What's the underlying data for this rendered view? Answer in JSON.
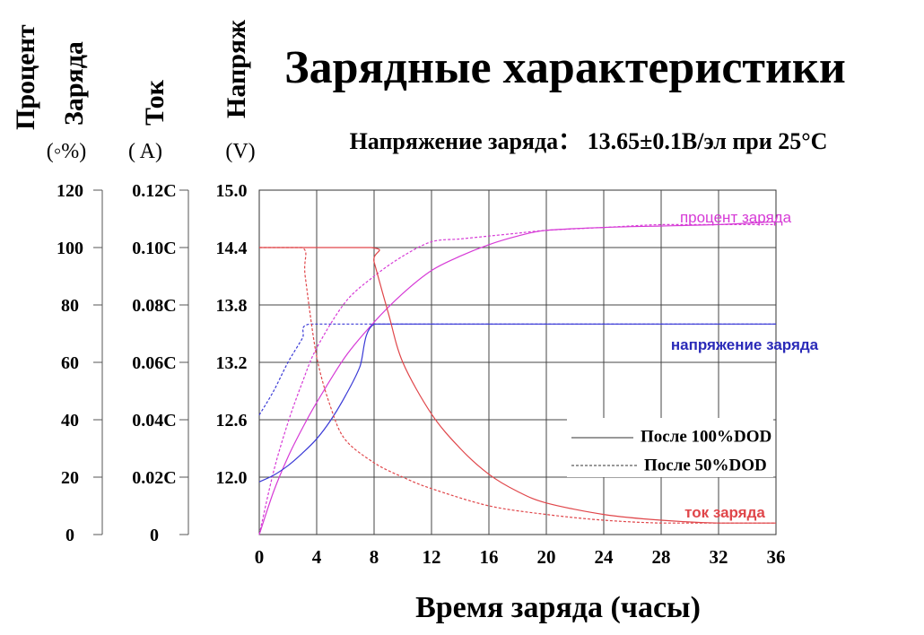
{
  "chart_data": {
    "type": "line",
    "title": "Зарядные характеристики",
    "subtitle": "Напряжение заряда： 13.65±0.1В/эл при 25°С",
    "xlabel": "Время заряда (часы)",
    "xlim": [
      0,
      36
    ],
    "x_ticks": [
      "0",
      "4",
      "8",
      "12",
      "16",
      "20",
      "24",
      "28",
      "32",
      "36"
    ],
    "grid": true,
    "axes": {
      "percent": {
        "label_line1": "Процент",
        "label_line2": "Заряда",
        "unit": "(◦%)",
        "ticks": [
          "0",
          "20",
          "40",
          "60",
          "80",
          "100",
          "120"
        ],
        "ylim": [
          0,
          120
        ]
      },
      "current": {
        "label": "Ток",
        "unit": "( A)",
        "ticks": [
          "0",
          "0.02C",
          "0.04C",
          "0.06C",
          "0.08C",
          "0.10C",
          "0.12C"
        ],
        "ylim": [
          0,
          0.12
        ]
      },
      "voltage": {
        "label": "Напряж",
        "unit": "(V)",
        "ticks": [
          "12.0",
          "12.6",
          "13.2",
          "13.8",
          "14.4",
          "15.0"
        ],
        "ylim": [
          11.4,
          15.0
        ]
      }
    },
    "legend": {
      "placement": "center-right",
      "solid_label": "После 100%DOD",
      "dashed_label": "После 50%DOD"
    },
    "curve_labels": {
      "percent": "процент заряда",
      "voltage": "напряжение заряда",
      "current": "ток заряда"
    },
    "series": [
      {
        "curve": "percent",
        "style": "solid",
        "axis": "percent",
        "color": "#d63ad6",
        "x": [
          0,
          1,
          2,
          3,
          4,
          6,
          8,
          10,
          12,
          14,
          16,
          18,
          20,
          24,
          28,
          32,
          36
        ],
        "y": [
          0,
          15,
          27,
          37,
          46,
          62,
          74,
          84,
          92,
          97,
          101,
          104,
          106,
          107,
          107.5,
          108,
          109
        ]
      },
      {
        "curve": "percent",
        "style": "dashed",
        "axis": "percent",
        "color": "#d63ad6",
        "x": [
          0,
          1,
          2,
          3,
          4,
          6,
          8,
          10,
          12,
          14,
          16,
          18,
          20,
          24,
          28,
          32,
          36
        ],
        "y": [
          0,
          22,
          39,
          53,
          65,
          81,
          90,
          97,
          102,
          103,
          104,
          105,
          106,
          107,
          108,
          108,
          108
        ]
      },
      {
        "curve": "voltage",
        "style": "solid",
        "axis": "voltage",
        "color": "#3a3ad6",
        "x": [
          0,
          1,
          2,
          3,
          4,
          5,
          6,
          7,
          8,
          12,
          16,
          20,
          24,
          28,
          32,
          36
        ],
        "y": [
          11.95,
          12.02,
          12.12,
          12.25,
          12.4,
          12.6,
          12.85,
          13.15,
          13.6,
          13.6,
          13.6,
          13.6,
          13.6,
          13.6,
          13.6,
          13.6
        ]
      },
      {
        "curve": "voltage",
        "style": "dashed",
        "axis": "voltage",
        "color": "#3a3ad6",
        "x": [
          0,
          1,
          2,
          3,
          3.5,
          8,
          12,
          16,
          20,
          24,
          28,
          32,
          36
        ],
        "y": [
          12.65,
          12.9,
          13.2,
          13.45,
          13.6,
          13.6,
          13.6,
          13.6,
          13.6,
          13.6,
          13.6,
          13.6,
          13.6
        ]
      },
      {
        "curve": "current",
        "style": "solid",
        "axis": "current",
        "color": "#e0464a",
        "x": [
          0,
          7.8,
          8,
          9,
          10,
          12,
          14,
          16,
          18,
          20,
          24,
          28,
          32,
          36
        ],
        "y": [
          0.1,
          0.1,
          0.095,
          0.077,
          0.06,
          0.042,
          0.03,
          0.021,
          0.015,
          0.011,
          0.007,
          0.005,
          0.004,
          0.004
        ]
      },
      {
        "curve": "current",
        "style": "dashed",
        "axis": "current",
        "color": "#e0464a",
        "x": [
          0,
          3,
          3.2,
          4,
          5,
          6,
          8,
          10,
          12,
          16,
          20,
          24,
          28,
          32,
          36
        ],
        "y": [
          0.1,
          0.1,
          0.09,
          0.062,
          0.044,
          0.033,
          0.025,
          0.02,
          0.016,
          0.01,
          0.007,
          0.005,
          0.004,
          0.004,
          0.004
        ]
      }
    ]
  }
}
